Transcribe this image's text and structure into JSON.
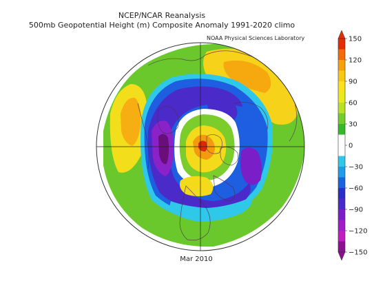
{
  "header": {
    "title_line1": "NCEP/NCAR Reanalysis",
    "title_line2": "500mb Geopotential Height (m) Composite Anomaly 1991-2020 climo",
    "credit": "NOAA Physical Sciences Laboratory"
  },
  "footer": {
    "date": "Mar 2010"
  },
  "colorbar": {
    "ticks": [
      "150",
      "120",
      "90",
      "60",
      "30",
      "0",
      "−30",
      "−60",
      "−90",
      "−120",
      "−150"
    ],
    "colors": [
      "#E22D07",
      "#F26A0B",
      "#F6A10A",
      "#F8C815",
      "#FAE21A",
      "#E8EA1E",
      "#B8E025",
      "#72CC2A",
      "#35B82A",
      "#FFFFFF",
      "#FFFFFF",
      "#2FC8E8",
      "#1E9CE8",
      "#1763E0",
      "#2A2DC8",
      "#4A2AC8",
      "#7A1FC8",
      "#A01DC8",
      "#C01EC0",
      "#8A1090"
    ]
  },
  "map": {
    "projection": "north polar stereographic",
    "land_color": "#4a2f55"
  }
}
